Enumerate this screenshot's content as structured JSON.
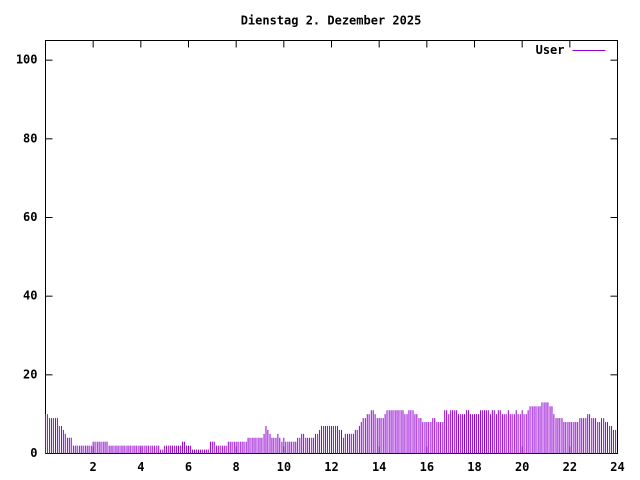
{
  "chart_data": {
    "type": "impulses",
    "title": "Dienstag 2. Dezember 2025",
    "x": [
      0,
      0.08,
      0.17,
      0.25,
      0.33,
      0.42,
      0.5,
      0.58,
      0.67,
      0.75,
      0.83,
      0.92,
      1,
      1.08,
      1.17,
      1.25,
      1.33,
      1.42,
      1.5,
      1.58,
      1.67,
      1.75,
      1.83,
      1.92,
      2,
      2.08,
      2.17,
      2.25,
      2.33,
      2.42,
      2.5,
      2.58,
      2.67,
      2.75,
      2.83,
      2.92,
      3,
      3.08,
      3.17,
      3.25,
      3.33,
      3.42,
      3.5,
      3.58,
      3.67,
      3.75,
      3.83,
      3.92,
      4,
      4.08,
      4.17,
      4.25,
      4.33,
      4.42,
      4.5,
      4.58,
      4.67,
      4.75,
      4.83,
      4.92,
      5,
      5.08,
      5.17,
      5.25,
      5.33,
      5.42,
      5.5,
      5.58,
      5.67,
      5.75,
      5.83,
      5.92,
      6,
      6.08,
      6.17,
      6.25,
      6.33,
      6.42,
      6.5,
      6.58,
      6.67,
      6.75,
      6.83,
      6.92,
      7,
      7.08,
      7.17,
      7.25,
      7.33,
      7.42,
      7.5,
      7.58,
      7.67,
      7.75,
      7.83,
      7.92,
      8,
      8.08,
      8.17,
      8.25,
      8.33,
      8.42,
      8.5,
      8.58,
      8.67,
      8.75,
      8.83,
      8.92,
      9,
      9.08,
      9.17,
      9.25,
      9.33,
      9.42,
      9.5,
      9.58,
      9.67,
      9.75,
      9.83,
      9.92,
      10,
      10.08,
      10.17,
      10.25,
      10.33,
      10.42,
      10.5,
      10.58,
      10.67,
      10.75,
      10.83,
      10.92,
      11,
      11.08,
      11.17,
      11.25,
      11.33,
      11.42,
      11.5,
      11.58,
      11.67,
      11.75,
      11.83,
      11.92,
      12,
      12.08,
      12.17,
      12.25,
      12.33,
      12.42,
      12.5,
      12.58,
      12.67,
      12.75,
      12.83,
      12.92,
      13,
      13.08,
      13.17,
      13.25,
      13.33,
      13.42,
      13.5,
      13.58,
      13.67,
      13.75,
      13.83,
      13.92,
      14,
      14.08,
      14.17,
      14.25,
      14.33,
      14.42,
      14.5,
      14.58,
      14.67,
      14.75,
      14.83,
      14.92,
      15,
      15.08,
      15.17,
      15.25,
      15.33,
      15.42,
      15.5,
      15.58,
      15.67,
      15.75,
      15.83,
      15.92,
      16,
      16.08,
      16.17,
      16.25,
      16.33,
      16.42,
      16.5,
      16.58,
      16.67,
      16.75,
      16.83,
      16.92,
      17,
      17.08,
      17.17,
      17.25,
      17.33,
      17.42,
      17.5,
      17.58,
      17.67,
      17.75,
      17.83,
      17.92,
      18,
      18.08,
      18.17,
      18.25,
      18.33,
      18.42,
      18.5,
      18.58,
      18.67,
      18.75,
      18.83,
      18.92,
      19,
      19.08,
      19.17,
      19.25,
      19.33,
      19.42,
      19.5,
      19.58,
      19.67,
      19.75,
      19.83,
      19.92,
      20,
      20.08,
      20.17,
      20.25,
      20.33,
      20.42,
      20.5,
      20.58,
      20.67,
      20.75,
      20.83,
      20.92,
      21,
      21.08,
      21.17,
      21.25,
      21.33,
      21.42,
      21.5,
      21.58,
      21.67,
      21.75,
      21.83,
      21.92,
      22,
      22.08,
      22.17,
      22.25,
      22.33,
      22.42,
      22.5,
      22.58,
      22.67,
      22.75,
      22.83,
      22.92,
      23,
      23.08,
      23.17,
      23.25,
      23.33,
      23.42,
      23.5,
      23.58,
      23.67,
      23.75,
      23.83,
      23.92
    ],
    "series": [
      {
        "name": "User",
        "color": "#9400d3",
        "values": [
          10,
          10,
          9,
          9,
          9,
          9,
          9,
          7,
          7,
          6,
          5,
          4,
          4,
          4,
          2,
          2,
          2,
          2,
          2,
          2,
          2,
          2,
          2,
          2,
          3,
          3,
          3,
          3,
          3,
          3,
          3,
          3,
          2,
          2,
          2,
          2,
          2,
          2,
          2,
          2,
          2,
          2,
          2,
          2,
          2,
          2,
          2,
          2,
          2,
          2,
          2,
          2,
          2,
          2,
          2,
          2,
          2,
          2,
          1,
          1,
          2,
          2,
          2,
          2,
          2,
          2,
          2,
          2,
          2,
          3,
          3,
          2,
          2,
          2,
          1,
          1,
          1,
          1,
          1,
          1,
          1,
          1,
          1,
          3,
          3,
          3,
          2,
          2,
          2,
          2,
          2,
          2,
          3,
          3,
          3,
          3,
          3,
          3,
          3,
          3,
          3,
          3,
          4,
          4,
          4,
          4,
          4,
          4,
          4,
          4,
          5,
          7,
          6,
          5,
          4,
          4,
          4,
          5,
          4,
          3,
          4,
          3,
          3,
          3,
          3,
          3,
          3,
          4,
          4,
          5,
          5,
          4,
          4,
          4,
          4,
          4,
          5,
          5,
          6,
          7,
          7,
          7,
          7,
          7,
          7,
          7,
          7,
          7,
          6,
          6,
          4,
          5,
          5,
          5,
          5,
          5,
          6,
          6,
          7,
          8,
          9,
          9,
          10,
          10,
          11,
          11,
          10,
          9,
          9,
          9,
          9,
          10,
          11,
          11,
          11,
          11,
          11,
          11,
          11,
          11,
          11,
          10,
          10,
          11,
          11,
          11,
          10,
          10,
          9,
          9,
          8,
          8,
          8,
          8,
          8,
          9,
          9,
          8,
          8,
          8,
          8,
          11,
          11,
          10,
          11,
          11,
          11,
          11,
          10,
          10,
          10,
          10,
          11,
          11,
          10,
          10,
          10,
          10,
          10,
          11,
          11,
          11,
          11,
          11,
          10,
          11,
          11,
          10,
          11,
          11,
          10,
          10,
          10,
          11,
          10,
          10,
          10,
          11,
          10,
          10,
          11,
          10,
          10,
          11,
          12,
          12,
          12,
          12,
          12,
          12,
          13,
          13,
          13,
          13,
          12,
          12,
          10,
          9,
          9,
          9,
          9,
          8,
          8,
          8,
          8,
          8,
          8,
          8,
          8,
          9,
          9,
          9,
          9,
          10,
          10,
          9,
          9,
          9,
          8,
          8,
          9,
          9,
          8,
          8,
          7,
          7,
          6,
          6
        ]
      }
    ],
    "xlim": [
      0,
      24
    ],
    "xticks": [
      2,
      4,
      6,
      8,
      10,
      12,
      14,
      16,
      18,
      20,
      22,
      24
    ],
    "ylim": [
      0,
      105
    ],
    "yticks": [
      0,
      20,
      40,
      60,
      80,
      100
    ],
    "legend": "top-right"
  }
}
